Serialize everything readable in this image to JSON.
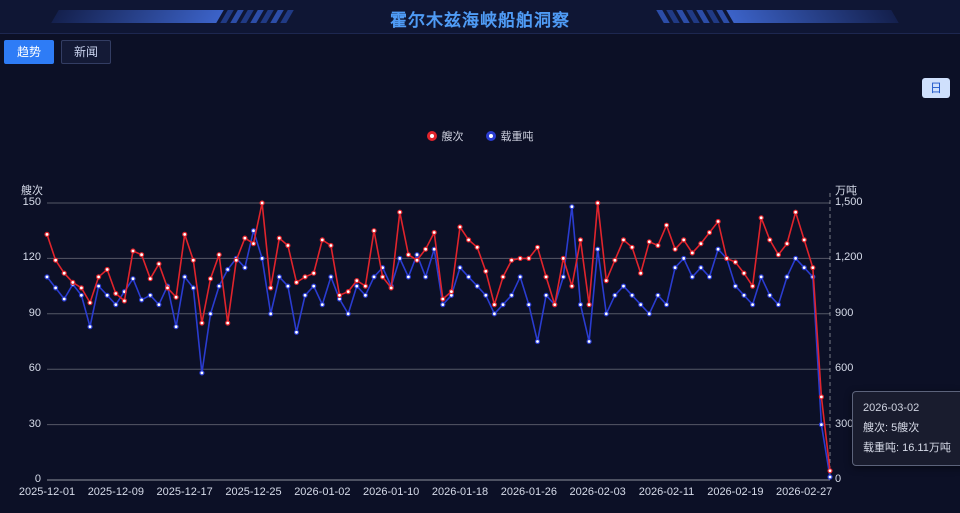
{
  "header": {
    "title": "霍尔木兹海峡船舶洞察"
  },
  "tabs": [
    {
      "label": "趋势",
      "active": true
    },
    {
      "label": "新闻",
      "active": false
    }
  ],
  "controls": {
    "day_button_label": "日"
  },
  "legend": {
    "items": [
      {
        "label": "艘次",
        "color": "#e0242c"
      },
      {
        "label": "载重吨",
        "color": "#2a3cd0"
      }
    ]
  },
  "colors": {
    "background": "#0c1026",
    "title": "#4f9bf5",
    "active_tab": "#2e7cf6",
    "series_red": "#e0242c",
    "series_blue": "#2a3cd0"
  },
  "chart_data": {
    "type": "line",
    "title": "",
    "grid": true,
    "legend_position": "top",
    "x_dates": [
      "2025-12-01",
      "2025-12-02",
      "2025-12-03",
      "2025-12-04",
      "2025-12-05",
      "2025-12-06",
      "2025-12-07",
      "2025-12-08",
      "2025-12-09",
      "2025-12-10",
      "2025-12-11",
      "2025-12-12",
      "2025-12-13",
      "2025-12-14",
      "2025-12-15",
      "2025-12-16",
      "2025-12-17",
      "2025-12-18",
      "2025-12-19",
      "2025-12-20",
      "2025-12-21",
      "2025-12-22",
      "2025-12-23",
      "2025-12-24",
      "2025-12-25",
      "2025-12-26",
      "2025-12-27",
      "2025-12-28",
      "2025-12-29",
      "2025-12-30",
      "2025-12-31",
      "2026-01-01",
      "2026-01-02",
      "2026-01-03",
      "2026-01-04",
      "2026-01-05",
      "2026-01-06",
      "2026-01-07",
      "2026-01-08",
      "2026-01-09",
      "2026-01-10",
      "2026-01-11",
      "2026-01-12",
      "2026-01-13",
      "2026-01-14",
      "2026-01-15",
      "2026-01-16",
      "2026-01-17",
      "2026-01-18",
      "2026-01-19",
      "2026-01-20",
      "2026-01-21",
      "2026-01-22",
      "2026-01-23",
      "2026-01-24",
      "2026-01-25",
      "2026-01-26",
      "2026-01-27",
      "2026-01-28",
      "2026-01-29",
      "2026-01-30",
      "2026-01-31",
      "2026-02-01",
      "2026-02-02",
      "2026-02-03",
      "2026-02-04",
      "2026-02-05",
      "2026-02-06",
      "2026-02-07",
      "2026-02-08",
      "2026-02-09",
      "2026-02-10",
      "2026-02-11",
      "2026-02-12",
      "2026-02-13",
      "2026-02-14",
      "2026-02-15",
      "2026-02-16",
      "2026-02-17",
      "2026-02-18",
      "2026-02-19",
      "2026-02-20",
      "2026-02-21",
      "2026-02-22",
      "2026-02-23",
      "2026-02-24",
      "2026-02-25",
      "2026-02-26",
      "2026-02-27",
      "2026-02-28",
      "2026-03-01",
      "2026-03-02"
    ],
    "x_tick_labels": [
      "2025-12-01",
      "2025-12-09",
      "2025-12-17",
      "2025-12-25",
      "2026-01-02",
      "2026-01-10",
      "2026-01-18",
      "2026-01-26",
      "2026-02-03",
      "2026-02-11",
      "2026-02-19",
      "2026-02-27"
    ],
    "left_axis": {
      "name": "艘次",
      "min": 0,
      "max": 150,
      "ticks": [
        "0",
        "30",
        "60",
        "90",
        "120",
        "150"
      ]
    },
    "right_axis": {
      "name": "万吨",
      "min": 0,
      "max": 1500,
      "ticks": [
        "0",
        "300",
        "600",
        "900",
        "1,200",
        "1,500"
      ]
    },
    "series": [
      {
        "name": "艘次",
        "color": "#e0242c",
        "axis": "left",
        "values": [
          133,
          119,
          112,
          107,
          104,
          96,
          110,
          114,
          101,
          97,
          124,
          122,
          109,
          117,
          104,
          99,
          133,
          119,
          85,
          109,
          122,
          85,
          119,
          131,
          128,
          150,
          104,
          131,
          127,
          107,
          110,
          112,
          130,
          127,
          100,
          102,
          108,
          105,
          135,
          110,
          104,
          145,
          122,
          119,
          125,
          134,
          98,
          102,
          137,
          130,
          126,
          113,
          95,
          110,
          119,
          120,
          120,
          126,
          110,
          95,
          120,
          105,
          130,
          95,
          150,
          108,
          119,
          130,
          126,
          112,
          129,
          127,
          138,
          125,
          130,
          123,
          128,
          134,
          140,
          120,
          118,
          112,
          105,
          142,
          130,
          122,
          128,
          145,
          130,
          115,
          45,
          5
        ]
      },
      {
        "name": "载重吨",
        "color": "#2a3cd0",
        "axis": "right",
        "values": [
          1100,
          1040,
          980,
          1060,
          1000,
          830,
          1050,
          1000,
          950,
          1020,
          1090,
          975,
          1000,
          950,
          1050,
          830,
          1100,
          1040,
          580,
          900,
          1050,
          1140,
          1200,
          1150,
          1350,
          1200,
          900,
          1100,
          1050,
          800,
          1000,
          1050,
          950,
          1100,
          980,
          900,
          1050,
          1000,
          1100,
          1150,
          1050,
          1200,
          1100,
          1220,
          1100,
          1250,
          950,
          1000,
          1150,
          1100,
          1050,
          1000,
          900,
          950,
          1000,
          1100,
          950,
          750,
          1000,
          950,
          1100,
          1480,
          950,
          750,
          1250,
          900,
          1000,
          1050,
          1000,
          950,
          900,
          1000,
          950,
          1150,
          1200,
          1100,
          1150,
          1100,
          1250,
          1200,
          1050,
          1000,
          950,
          1100,
          1000,
          950,
          1100,
          1200,
          1150,
          1100,
          300,
          16.11
        ]
      }
    ]
  },
  "tooltip": {
    "date": "2026-03-02",
    "lines": [
      "艘次: 5艘次",
      "载重吨: 16.11万吨"
    ]
  }
}
